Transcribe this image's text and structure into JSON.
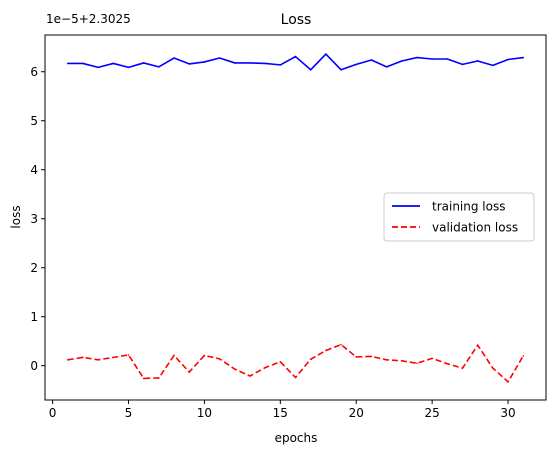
{
  "chart_data": {
    "type": "line",
    "title": "Loss",
    "xlabel": "epochs",
    "ylabel": "loss",
    "offset_label": "1e−5+2.3025",
    "xlim": [
      -0.5,
      32.5
    ],
    "ylim": [
      -0.7,
      6.75
    ],
    "y_scale_note": "values in units of 1e-5 above 2.3025",
    "xticks": [
      0,
      5,
      10,
      15,
      20,
      25,
      30
    ],
    "yticks": [
      0,
      1,
      2,
      3,
      4,
      5,
      6
    ],
    "grid": false,
    "legend_position": "center right",
    "x": [
      1,
      2,
      3,
      4,
      5,
      6,
      7,
      8,
      9,
      10,
      11,
      12,
      13,
      14,
      15,
      16,
      17,
      18,
      19,
      20,
      21,
      22,
      23,
      24,
      25,
      26,
      27,
      28,
      29,
      30,
      31
    ],
    "series": [
      {
        "name": "training loss",
        "color": "#0000ff",
        "style": "solid",
        "values": [
          6.17,
          6.17,
          6.09,
          6.17,
          6.09,
          6.18,
          6.1,
          6.28,
          6.16,
          6.2,
          6.28,
          6.18,
          6.18,
          6.17,
          6.14,
          6.31,
          6.04,
          6.36,
          6.04,
          6.15,
          6.24,
          6.1,
          6.22,
          6.29,
          6.26,
          6.26,
          6.15,
          6.22,
          6.13,
          6.25,
          6.29
        ]
      },
      {
        "name": "validation loss",
        "color": "#ff0000",
        "style": "dashed",
        "values": [
          0.12,
          0.17,
          0.12,
          0.17,
          0.22,
          -0.26,
          -0.25,
          0.21,
          -0.13,
          0.21,
          0.14,
          -0.07,
          -0.21,
          -0.04,
          0.08,
          -0.24,
          0.13,
          0.31,
          0.43,
          0.18,
          0.19,
          0.12,
          0.1,
          0.05,
          0.15,
          0.04,
          -0.05,
          0.42,
          -0.05,
          -0.33,
          0.2
        ]
      }
    ]
  }
}
